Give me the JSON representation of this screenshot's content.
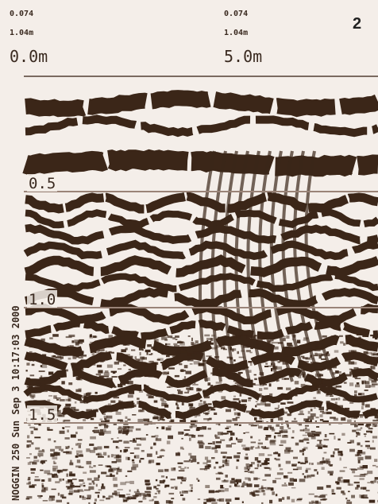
{
  "markers": [
    {
      "amplitude": "0.074",
      "range": "1.04m",
      "position": "0.0m"
    },
    {
      "amplitude": "0.074",
      "range": "1.04m",
      "position": "5.0m"
    }
  ],
  "panel_number": "2",
  "depth_labels": [
    "0.5",
    "1.0",
    "1.5"
  ],
  "side_text": "NOGGIN 250 Sun Sep 3 10:17:03 2000"
}
